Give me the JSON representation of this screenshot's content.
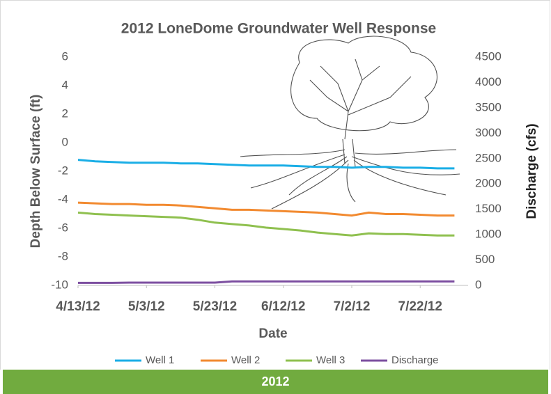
{
  "chart_data": {
    "type": "line",
    "title": "2012 LoneDome Groundwater Well Response",
    "x_label": "Date",
    "y_label": "Depth Below Surface (ft)",
    "y2_label": "Discharge (cfs)",
    "x": [
      "2012-04-13",
      "2012-04-18",
      "2012-04-23",
      "2012-04-28",
      "2012-05-03",
      "2012-05-08",
      "2012-05-13",
      "2012-05-18",
      "2012-05-23",
      "2012-05-28",
      "2012-06-02",
      "2012-06-07",
      "2012-06-12",
      "2012-06-17",
      "2012-06-22",
      "2012-06-27",
      "2012-07-02",
      "2012-07-07",
      "2012-07-12",
      "2012-07-17",
      "2012-07-22",
      "2012-07-27",
      "2012-08-01"
    ],
    "xlim": [
      "2012-04-13",
      "2012-08-05"
    ],
    "xticks": [
      {
        "value": "2012-04-13",
        "label": "4/13/12"
      },
      {
        "value": "2012-05-03",
        "label": "5/3/12"
      },
      {
        "value": "2012-05-23",
        "label": "5/23/12"
      },
      {
        "value": "2012-06-12",
        "label": "6/12/12"
      },
      {
        "value": "2012-07-02",
        "label": "7/2/12"
      },
      {
        "value": "2012-07-22",
        "label": "7/22/12"
      }
    ],
    "ylim": [
      -10,
      6
    ],
    "yticks": [
      -10,
      -8,
      -6,
      -4,
      -2,
      0,
      2,
      4,
      6
    ],
    "y2lim": [
      0,
      4500
    ],
    "y2ticks": [
      0,
      500,
      1000,
      1500,
      2000,
      2500,
      3000,
      3500,
      4000,
      4500
    ],
    "grid": false,
    "legend": "bottom",
    "series": [
      {
        "name": "Well 1",
        "color": "#1aaee6",
        "values": [
          -1.2,
          -1.3,
          -1.35,
          -1.4,
          -1.4,
          -1.4,
          -1.45,
          -1.45,
          -1.5,
          -1.55,
          -1.6,
          -1.6,
          -1.6,
          -1.65,
          -1.7,
          -1.7,
          -1.75,
          -1.7,
          -1.7,
          -1.75,
          -1.75,
          -1.8,
          -1.8
        ]
      },
      {
        "name": "Well 2",
        "color": "#f28a30",
        "values": [
          -4.2,
          -4.25,
          -4.3,
          -4.3,
          -4.35,
          -4.35,
          -4.4,
          -4.5,
          -4.6,
          -4.7,
          -4.7,
          -4.75,
          -4.8,
          -4.85,
          -4.9,
          -5.0,
          -5.1,
          -4.9,
          -5.0,
          -5.0,
          -5.05,
          -5.1,
          -5.1
        ]
      },
      {
        "name": "Well 3",
        "color": "#8fc04f",
        "values": [
          -4.9,
          -5.0,
          -5.05,
          -5.1,
          -5.15,
          -5.2,
          -5.25,
          -5.4,
          -5.6,
          -5.7,
          -5.8,
          -5.95,
          -6.05,
          -6.15,
          -6.3,
          -6.4,
          -6.5,
          -6.35,
          -6.4,
          -6.4,
          -6.45,
          -6.5,
          -6.5
        ]
      },
      {
        "name": "Discharge",
        "color": "#7c4fa0",
        "axis": "y2",
        "values": [
          50,
          50,
          50,
          55,
          55,
          55,
          55,
          55,
          55,
          80,
          80,
          80,
          80,
          80,
          80,
          80,
          80,
          80,
          80,
          80,
          80,
          80,
          80
        ]
      }
    ]
  },
  "footer": "2012"
}
